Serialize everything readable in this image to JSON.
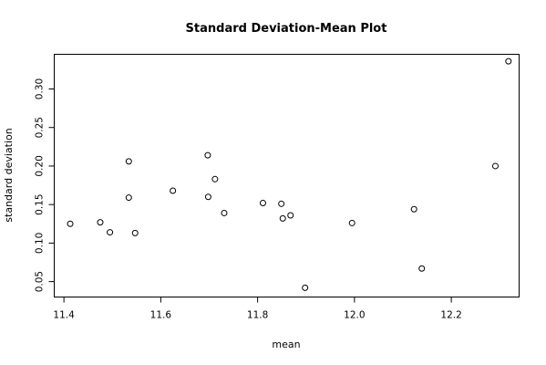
{
  "chart_data": {
    "type": "scatter",
    "title": "Standard Deviation-Mean Plot",
    "xlabel": "mean",
    "ylabel": "standard deviation",
    "xlim": [
      11.38,
      12.34
    ],
    "ylim": [
      0.03,
      0.345
    ],
    "xticks": [
      "11.4",
      "11.6",
      "11.8",
      "12.0",
      "12.2"
    ],
    "yticks": [
      "0.05",
      "0.10",
      "0.15",
      "0.20",
      "0.25",
      "0.30"
    ],
    "grid": false,
    "points": [
      {
        "x": 11.413,
        "y": 0.125
      },
      {
        "x": 11.475,
        "y": 0.127
      },
      {
        "x": 11.495,
        "y": 0.114
      },
      {
        "x": 11.534,
        "y": 0.206
      },
      {
        "x": 11.534,
        "y": 0.159
      },
      {
        "x": 11.547,
        "y": 0.113
      },
      {
        "x": 11.625,
        "y": 0.168
      },
      {
        "x": 11.697,
        "y": 0.214
      },
      {
        "x": 11.698,
        "y": 0.16
      },
      {
        "x": 11.712,
        "y": 0.183
      },
      {
        "x": 11.731,
        "y": 0.139
      },
      {
        "x": 11.811,
        "y": 0.152
      },
      {
        "x": 11.849,
        "y": 0.151
      },
      {
        "x": 11.852,
        "y": 0.132
      },
      {
        "x": 11.868,
        "y": 0.136
      },
      {
        "x": 11.898,
        "y": 0.042
      },
      {
        "x": 11.995,
        "y": 0.126
      },
      {
        "x": 12.123,
        "y": 0.144
      },
      {
        "x": 12.139,
        "y": 0.067
      },
      {
        "x": 12.291,
        "y": 0.2
      },
      {
        "x": 12.318,
        "y": 0.336
      }
    ]
  }
}
